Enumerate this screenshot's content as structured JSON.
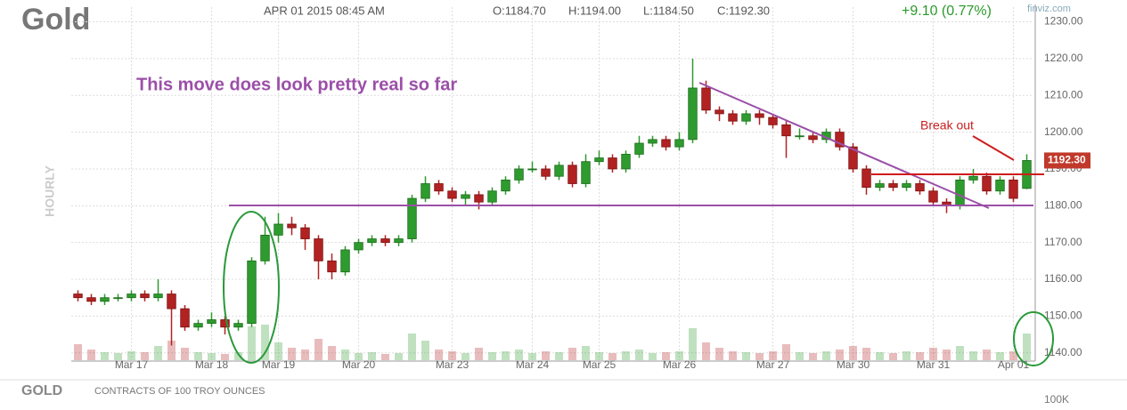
{
  "chart_data": {
    "type": "candlestick",
    "title": "Gold",
    "date_label": "APR 01 2015 08:45 AM",
    "open_label": "O:1184.70",
    "high_label": "H:1194.00",
    "low_label": "L:1184.50",
    "close_label": "C:1192.30",
    "change_label": "+9.10 (0.77%)",
    "source": "finviz.com",
    "interval_label": "HOURLY",
    "symbol": "GOLD",
    "contract_note": "CONTRACTS OF 100 TROY OUNCES",
    "last_price_label": "1192.30",
    "annotations": [
      "This move does look pretty real so far",
      "Break out"
    ],
    "categories": [
      null,
      null,
      null,
      null,
      "Mar 17",
      null,
      null,
      null,
      null,
      null,
      "Mar 18",
      null,
      null,
      null,
      null,
      "Mar 19",
      null,
      null,
      null,
      null,
      null,
      "Mar 20",
      null,
      null,
      null,
      null,
      null,
      null,
      "Mar 23",
      null,
      null,
      null,
      null,
      null,
      "Mar 24",
      null,
      null,
      null,
      null,
      "Mar 25",
      null,
      null,
      null,
      null,
      null,
      "Mar 26",
      null,
      null,
      null,
      null,
      null,
      null,
      "Mar 27",
      null,
      null,
      null,
      null,
      null,
      "Mar 30",
      null,
      null,
      null,
      null,
      null,
      "Mar 31",
      null,
      null,
      null,
      null,
      null,
      "Apr 01",
      null
    ],
    "open": [
      1156,
      1155,
      1154,
      1155,
      1155,
      1156,
      1155,
      1156,
      1152,
      1147,
      1148,
      1149,
      1147,
      1148,
      1165,
      1172,
      1175,
      1174,
      1171,
      1165,
      1162,
      1168,
      1170,
      1171,
      1170,
      1171,
      1182,
      1186,
      1184,
      1182,
      1183,
      1181,
      1184,
      1187,
      1190,
      1190,
      1188,
      1191,
      1186,
      1192,
      1193,
      1190,
      1194,
      1197,
      1198,
      1196,
      1198,
      1212,
      1206,
      1205,
      1203,
      1205,
      1204,
      1202,
      1199,
      1199,
      1198,
      1200,
      1196,
      1190,
      1185,
      1186,
      1185,
      1186,
      1184,
      1181,
      1180,
      1187,
      1188,
      1184,
      1187,
      1184.7
    ],
    "high": [
      1157,
      1156,
      1156,
      1156,
      1157,
      1157,
      1160,
      1157,
      1153,
      1149,
      1151,
      1150,
      1149,
      1166,
      1177,
      1178,
      1177,
      1175,
      1172,
      1167,
      1169,
      1171,
      1172,
      1172,
      1172,
      1183,
      1188,
      1187,
      1185,
      1184,
      1184,
      1185,
      1188,
      1191,
      1192,
      1191,
      1192,
      1192,
      1194,
      1195,
      1194,
      1195,
      1199,
      1199,
      1199,
      1200,
      1220,
      1214,
      1207,
      1206,
      1206,
      1206,
      1205,
      1203,
      1201,
      1200,
      1201,
      1201,
      1197,
      1191,
      1187,
      1187,
      1187,
      1187,
      1185,
      1182,
      1188,
      1190,
      1189,
      1188,
      1188,
      1194
    ],
    "low": [
      1154,
      1153,
      1153,
      1154,
      1154,
      1154,
      1154,
      1142,
      1146,
      1146,
      1147,
      1145,
      1146,
      1147,
      1164,
      1170,
      1172,
      1168,
      1160,
      1160,
      1161,
      1167,
      1169,
      1169,
      1169,
      1170,
      1181,
      1183,
      1181,
      1180,
      1179,
      1180,
      1183,
      1186,
      1189,
      1187,
      1187,
      1185,
      1185,
      1191,
      1189,
      1189,
      1193,
      1196,
      1195,
      1195,
      1197,
      1205,
      1203,
      1202,
      1202,
      1202,
      1201,
      1193,
      1198,
      1197,
      1197,
      1195,
      1189,
      1183,
      1184,
      1184,
      1184,
      1183,
      1180,
      1178,
      1179,
      1186,
      1183,
      1183,
      1181,
      1184.5
    ],
    "close": [
      1155,
      1154,
      1155,
      1155,
      1156,
      1155,
      1156,
      1152,
      1147,
      1148,
      1149,
      1147,
      1148,
      1165,
      1172,
      1175,
      1174,
      1171,
      1165,
      1162,
      1168,
      1170,
      1171,
      1170,
      1171,
      1182,
      1186,
      1184,
      1182,
      1183,
      1181,
      1184,
      1187,
      1190,
      1190,
      1188,
      1191,
      1186,
      1192,
      1193,
      1190,
      1194,
      1197,
      1198,
      1196,
      1198,
      1212,
      1206,
      1205,
      1203,
      1205,
      1204,
      1202,
      1199,
      1199,
      1198,
      1200,
      1196,
      1190,
      1185,
      1186,
      1185,
      1186,
      1184,
      1181,
      1180,
      1187,
      1188,
      1184,
      1187,
      1182,
      1192.3
    ],
    "volume": [
      18000,
      12000,
      9000,
      8000,
      10000,
      9000,
      16000,
      22000,
      14000,
      9000,
      8000,
      7000,
      9000,
      38000,
      40000,
      20000,
      14000,
      12000,
      24000,
      16000,
      12000,
      8000,
      9000,
      7000,
      8000,
      30000,
      22000,
      12000,
      10000,
      8000,
      14000,
      9000,
      10000,
      12000,
      8000,
      10000,
      9000,
      14000,
      16000,
      9000,
      8000,
      10000,
      12000,
      8000,
      9000,
      10000,
      36000,
      20000,
      14000,
      10000,
      9000,
      8000,
      10000,
      18000,
      9000,
      8000,
      10000,
      12000,
      16000,
      14000,
      9000,
      8000,
      10000,
      9000,
      14000,
      12000,
      16000,
      10000,
      12000,
      9000,
      10000,
      30000
    ],
    "volume_axis_label": {
      "value": 100000,
      "label": "100K"
    },
    "up_color": "#2e9b2e",
    "down_color": "#b22222",
    "ylim": [
      1138,
      1234
    ],
    "yticks": [
      {
        "value": 1140,
        "label": "1140.00"
      },
      {
        "value": 1150,
        "label": "1150.00"
      },
      {
        "value": 1160,
        "label": "1160.00"
      },
      {
        "value": 1170,
        "label": "1170.00"
      },
      {
        "value": 1180,
        "label": "1180.00"
      },
      {
        "value": 1190,
        "label": "1190.00"
      },
      {
        "value": 1200,
        "label": "1200.00"
      },
      {
        "value": 1210,
        "label": "1210.00"
      },
      {
        "value": 1220,
        "label": "1220.00"
      },
      {
        "value": 1230,
        "label": "1230.00"
      }
    ],
    "grid": true
  }
}
